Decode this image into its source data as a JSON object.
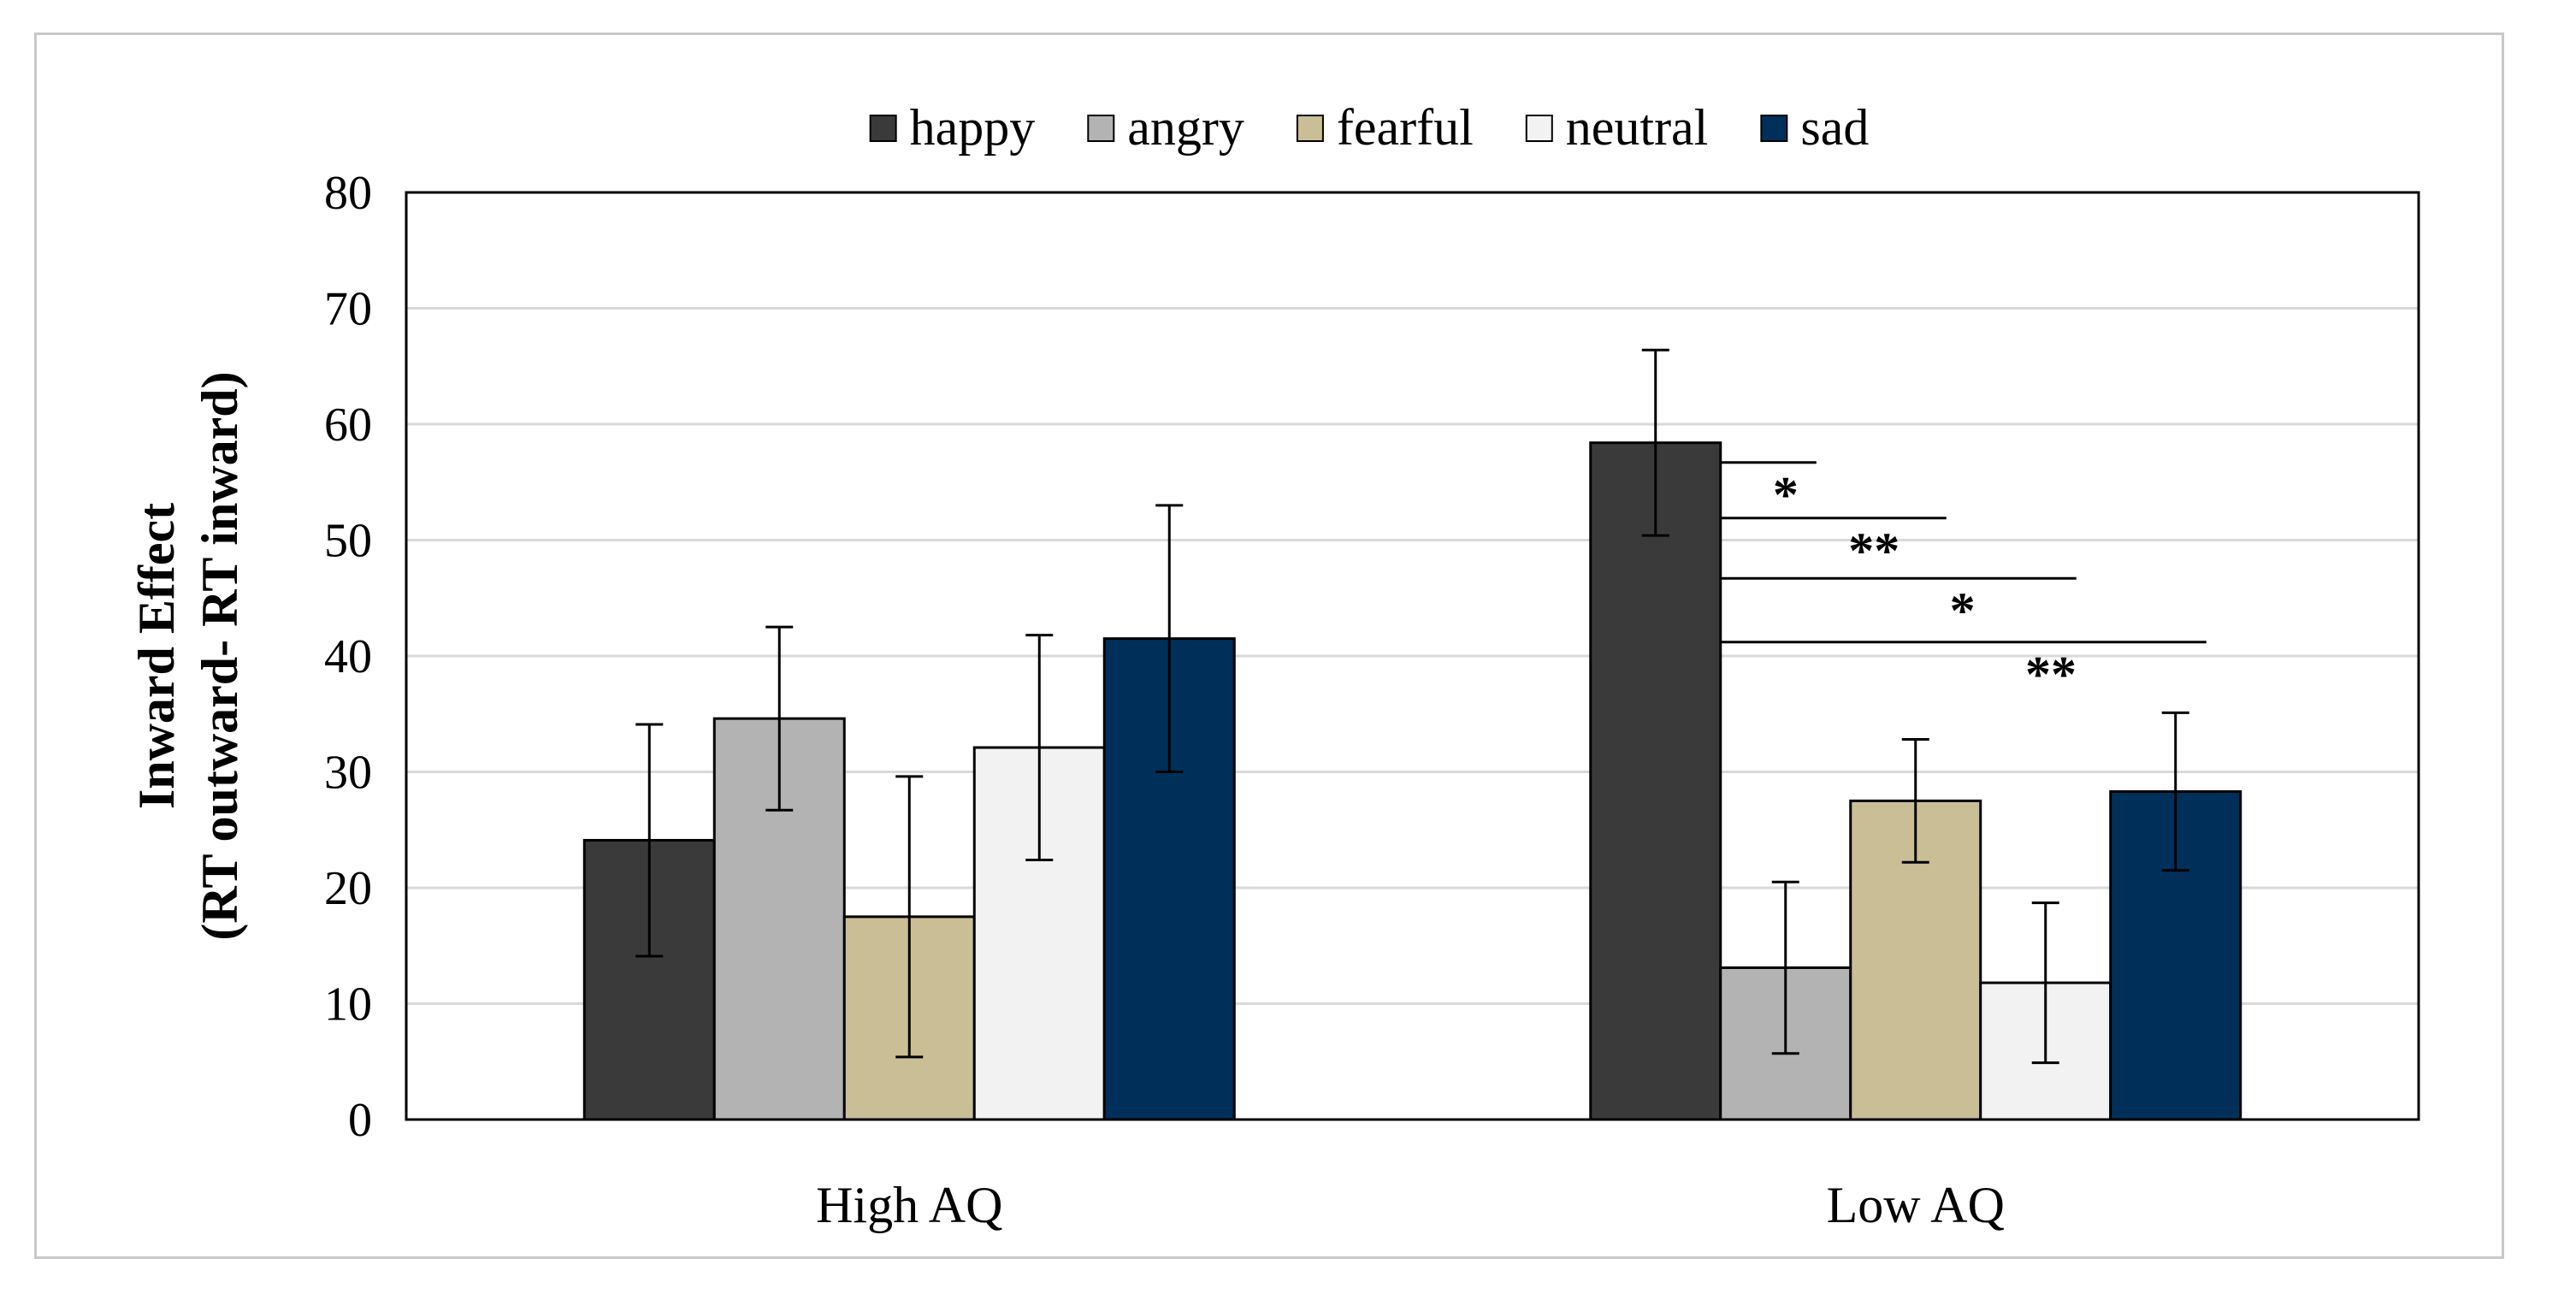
{
  "chart_data": {
    "type": "bar",
    "title": "",
    "xlabel": "",
    "ylabel_lines": [
      "Inward Effect",
      "(RT outward- RT inward)"
    ],
    "ylim": [
      0,
      80
    ],
    "yticks": [
      0,
      10,
      20,
      30,
      40,
      50,
      60,
      70,
      80
    ],
    "grid": true,
    "legend_position": "top-center",
    "categories": [
      "High AQ",
      "Low AQ"
    ],
    "series": [
      {
        "name": "happy",
        "color": "#3a3a3a",
        "values": [
          24.1,
          58.4
        ],
        "errors": [
          10.0,
          8.0
        ]
      },
      {
        "name": "angry",
        "color": "#b3b3b3",
        "values": [
          34.6,
          13.1
        ],
        "errors": [
          7.9,
          7.4
        ]
      },
      {
        "name": "fearful",
        "color": "#cabe97",
        "values": [
          17.5,
          27.5
        ],
        "errors": [
          12.1,
          5.3
        ]
      },
      {
        "name": "neutral",
        "color": "#f2f2f2",
        "values": [
          32.1,
          11.8
        ],
        "errors": [
          9.7,
          6.9
        ]
      },
      {
        "name": "sad",
        "color": "#00305a",
        "values": [
          41.5,
          28.3
        ],
        "errors": [
          11.5,
          6.8
        ]
      }
    ],
    "significance": [
      {
        "category": "Low AQ",
        "from": "happy",
        "to": "angry",
        "label": "*",
        "y": 56.7
      },
      {
        "category": "Low AQ",
        "from": "happy",
        "to": "fearful",
        "label": "**",
        "y": 51.9
      },
      {
        "category": "Low AQ",
        "from": "happy",
        "to": "neutral",
        "label": "*",
        "y": 46.7
      },
      {
        "category": "Low AQ",
        "from": "happy",
        "to": "sad",
        "label": "**",
        "y": 41.2
      }
    ]
  }
}
